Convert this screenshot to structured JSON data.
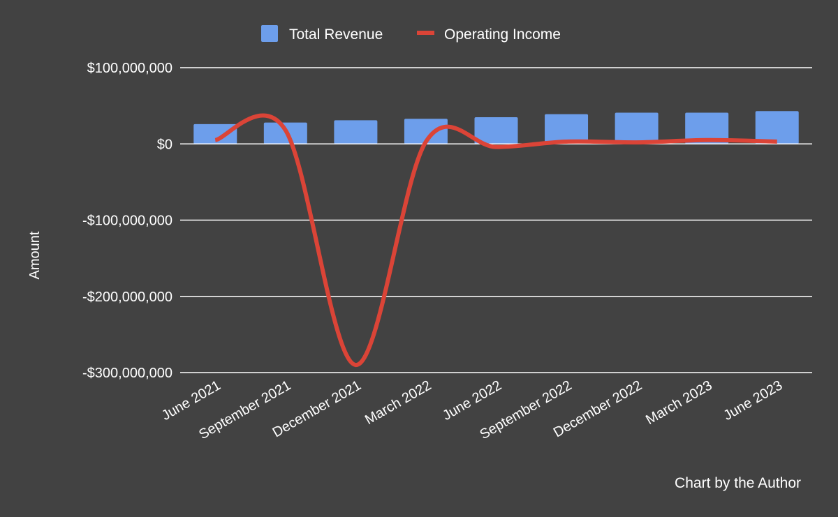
{
  "chart_data": {
    "type": "bar",
    "categories": [
      "June 2021",
      "September 2021",
      "December 2021",
      "March 2022",
      "June 2022",
      "September 2022",
      "December 2022",
      "March 2023",
      "June 2023"
    ],
    "series": [
      {
        "name": "Total Revenue",
        "type": "bar",
        "color": "#6d9eeb",
        "values": [
          26000000,
          28000000,
          31000000,
          33000000,
          35000000,
          39000000,
          41000000,
          41000000,
          43000000
        ]
      },
      {
        "name": "Operating Income",
        "type": "line",
        "smooth": true,
        "color": "#db4437",
        "values": [
          5000000,
          18000000,
          -290000000,
          3000000,
          -4000000,
          3000000,
          2000000,
          5000000,
          3000000
        ]
      }
    ],
    "ylabel": "Amount",
    "ylim": [
      -300000000,
      100000000
    ],
    "yticks": [
      {
        "value": 100000000,
        "label": "$100,000,000"
      },
      {
        "value": 0,
        "label": "$0"
      },
      {
        "value": -100000000,
        "label": "-$100,000,000"
      },
      {
        "value": -200000000,
        "label": "-$200,000,000"
      },
      {
        "value": -300000000,
        "label": "-$300,000,000"
      }
    ],
    "grid": true,
    "legend_position": "top-center",
    "credit": "Chart by the Author"
  }
}
